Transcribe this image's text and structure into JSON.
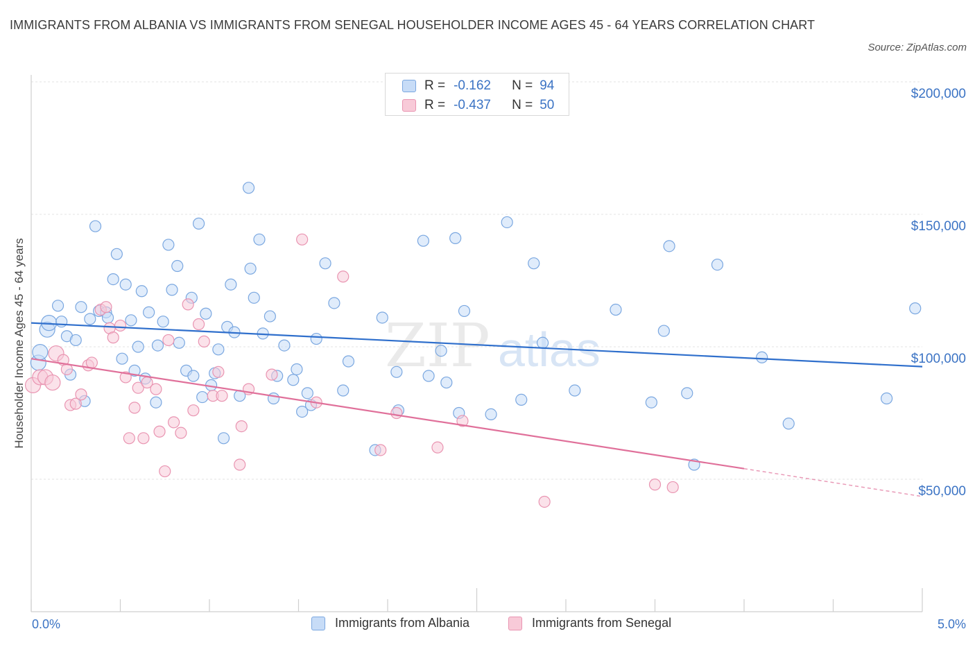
{
  "title": "IMMIGRANTS FROM ALBANIA VS IMMIGRANTS FROM SENEGAL HOUSEHOLDER INCOME AGES 45 - 64 YEARS CORRELATION CHART",
  "source": "Source: ZipAtlas.com",
  "watermark": {
    "zip": "ZIP",
    "atlas": "atlas"
  },
  "colors": {
    "albania_fill": "#c7dcf7",
    "albania_stroke": "#7aa7e0",
    "albania_line": "#2f6fcc",
    "senegal_fill": "#f8cad8",
    "senegal_stroke": "#e994b1",
    "senegal_line": "#e0709a",
    "grid": "#e3e3e3",
    "axis_text": "#3b73c4"
  },
  "legend": {
    "albania": {
      "r_label": "R =",
      "r_value": "-0.162",
      "n_label": "N =",
      "n_value": "94"
    },
    "senegal": {
      "r_label": "R =",
      "r_value": "-0.437",
      "n_label": "N =",
      "n_value": "50"
    }
  },
  "chart_data": {
    "type": "scatter",
    "title": "IMMIGRANTS FROM ALBANIA VS IMMIGRANTS FROM SENEGAL HOUSEHOLDER INCOME AGES 45 - 64 YEARS CORRELATION CHART",
    "xlabel": "",
    "ylabel": "Householder Income Ages 45 - 64 years",
    "xlim": [
      0,
      5.0
    ],
    "ylim": [
      0,
      200000
    ],
    "x_tick_labels": [
      "0.0%",
      "5.0%"
    ],
    "y_ticks": [
      50000,
      100000,
      150000,
      200000
    ],
    "y_tick_labels": [
      "$50,000",
      "$100,000",
      "$150,000",
      "$200,000"
    ],
    "grid": true,
    "legend_position": "bottom",
    "series": [
      {
        "name": "Immigrants from Albania",
        "trend": {
          "x": [
            0.0,
            5.0
          ],
          "y": [
            109000,
            92500
          ]
        },
        "points": [
          [
            0.04,
            94000
          ],
          [
            0.05,
            98000
          ],
          [
            0.09,
            106500
          ],
          [
            0.1,
            109000
          ],
          [
            0.15,
            115500
          ],
          [
            0.17,
            109500
          ],
          [
            0.2,
            104000
          ],
          [
            0.22,
            89500
          ],
          [
            0.25,
            102500
          ],
          [
            0.28,
            115000
          ],
          [
            0.3,
            79500
          ],
          [
            0.33,
            110500
          ],
          [
            0.36,
            145500
          ],
          [
            0.38,
            113500
          ],
          [
            0.42,
            113000
          ],
          [
            0.43,
            111000
          ],
          [
            0.46,
            125500
          ],
          [
            0.48,
            135000
          ],
          [
            0.51,
            95500
          ],
          [
            0.53,
            123500
          ],
          [
            0.56,
            110000
          ],
          [
            0.58,
            91000
          ],
          [
            0.6,
            100000
          ],
          [
            0.62,
            121000
          ],
          [
            0.64,
            88000
          ],
          [
            0.66,
            113000
          ],
          [
            0.7,
            79000
          ],
          [
            0.71,
            100500
          ],
          [
            0.74,
            109500
          ],
          [
            0.77,
            138500
          ],
          [
            0.79,
            121500
          ],
          [
            0.82,
            130500
          ],
          [
            0.83,
            101500
          ],
          [
            0.87,
            91000
          ],
          [
            0.9,
            118500
          ],
          [
            0.91,
            89000
          ],
          [
            0.94,
            146500
          ],
          [
            0.96,
            81000
          ],
          [
            0.98,
            112500
          ],
          [
            1.01,
            85500
          ],
          [
            1.03,
            90000
          ],
          [
            1.05,
            99000
          ],
          [
            1.08,
            65500
          ],
          [
            1.1,
            107500
          ],
          [
            1.12,
            123500
          ],
          [
            1.14,
            105500
          ],
          [
            1.17,
            81500
          ],
          [
            1.22,
            160000
          ],
          [
            1.23,
            129500
          ],
          [
            1.25,
            118500
          ],
          [
            1.28,
            140500
          ],
          [
            1.3,
            105000
          ],
          [
            1.34,
            111500
          ],
          [
            1.36,
            80500
          ],
          [
            1.38,
            89000
          ],
          [
            1.42,
            100500
          ],
          [
            1.47,
            87500
          ],
          [
            1.49,
            91500
          ],
          [
            1.52,
            75500
          ],
          [
            1.55,
            82500
          ],
          [
            1.57,
            78000
          ],
          [
            1.6,
            103000
          ],
          [
            1.65,
            131500
          ],
          [
            1.7,
            116500
          ],
          [
            1.75,
            83500
          ],
          [
            1.78,
            94500
          ],
          [
            1.93,
            61000
          ],
          [
            1.97,
            111000
          ],
          [
            2.05,
            90500
          ],
          [
            2.06,
            76000
          ],
          [
            2.2,
            140000
          ],
          [
            2.23,
            89000
          ],
          [
            2.3,
            98500
          ],
          [
            2.33,
            86500
          ],
          [
            2.38,
            141000
          ],
          [
            2.4,
            75000
          ],
          [
            2.43,
            113500
          ],
          [
            2.58,
            74500
          ],
          [
            2.67,
            147000
          ],
          [
            2.75,
            80000
          ],
          [
            2.82,
            131500
          ],
          [
            2.87,
            101500
          ],
          [
            3.05,
            83500
          ],
          [
            3.28,
            114000
          ],
          [
            3.48,
            79000
          ],
          [
            3.55,
            106000
          ],
          [
            3.58,
            138000
          ],
          [
            3.68,
            82500
          ],
          [
            3.72,
            55500
          ],
          [
            3.85,
            131000
          ],
          [
            4.1,
            96000
          ],
          [
            4.25,
            71000
          ],
          [
            4.8,
            80500
          ],
          [
            4.96,
            114500
          ]
        ]
      },
      {
        "name": "Immigrants from Senegal",
        "trend": {
          "x": [
            0.0,
            4.0
          ],
          "y": [
            95500,
            54000
          ]
        },
        "trend_dashed": {
          "x": [
            4.0,
            5.0
          ],
          "y": [
            54000,
            43500
          ]
        },
        "points": [
          [
            0.01,
            85500
          ],
          [
            0.05,
            88500
          ],
          [
            0.08,
            88500
          ],
          [
            0.12,
            86500
          ],
          [
            0.14,
            97500
          ],
          [
            0.18,
            95000
          ],
          [
            0.2,
            91500
          ],
          [
            0.22,
            78000
          ],
          [
            0.25,
            78500
          ],
          [
            0.28,
            82000
          ],
          [
            0.32,
            93000
          ],
          [
            0.34,
            94000
          ],
          [
            0.39,
            114000
          ],
          [
            0.42,
            115000
          ],
          [
            0.44,
            107000
          ],
          [
            0.46,
            103500
          ],
          [
            0.5,
            108000
          ],
          [
            0.53,
            88500
          ],
          [
            0.55,
            65500
          ],
          [
            0.58,
            77000
          ],
          [
            0.6,
            84500
          ],
          [
            0.63,
            65500
          ],
          [
            0.65,
            86500
          ],
          [
            0.7,
            84000
          ],
          [
            0.72,
            68000
          ],
          [
            0.75,
            53000
          ],
          [
            0.77,
            102500
          ],
          [
            0.8,
            71500
          ],
          [
            0.84,
            67500
          ],
          [
            0.88,
            116000
          ],
          [
            0.91,
            76000
          ],
          [
            0.94,
            108500
          ],
          [
            0.97,
            102000
          ],
          [
            1.02,
            81500
          ],
          [
            1.05,
            90500
          ],
          [
            1.07,
            81500
          ],
          [
            1.17,
            55500
          ],
          [
            1.18,
            70000
          ],
          [
            1.22,
            84000
          ],
          [
            1.35,
            89500
          ],
          [
            1.52,
            140500
          ],
          [
            1.6,
            79000
          ],
          [
            1.75,
            126500
          ],
          [
            1.96,
            61000
          ],
          [
            2.05,
            75000
          ],
          [
            2.28,
            62000
          ],
          [
            2.42,
            72000
          ],
          [
            2.88,
            41500
          ],
          [
            3.5,
            48000
          ],
          [
            3.6,
            47000
          ]
        ]
      }
    ]
  },
  "bottom_legend": {
    "albania": "Immigrants from Albania",
    "senegal": "Immigrants from Senegal"
  }
}
